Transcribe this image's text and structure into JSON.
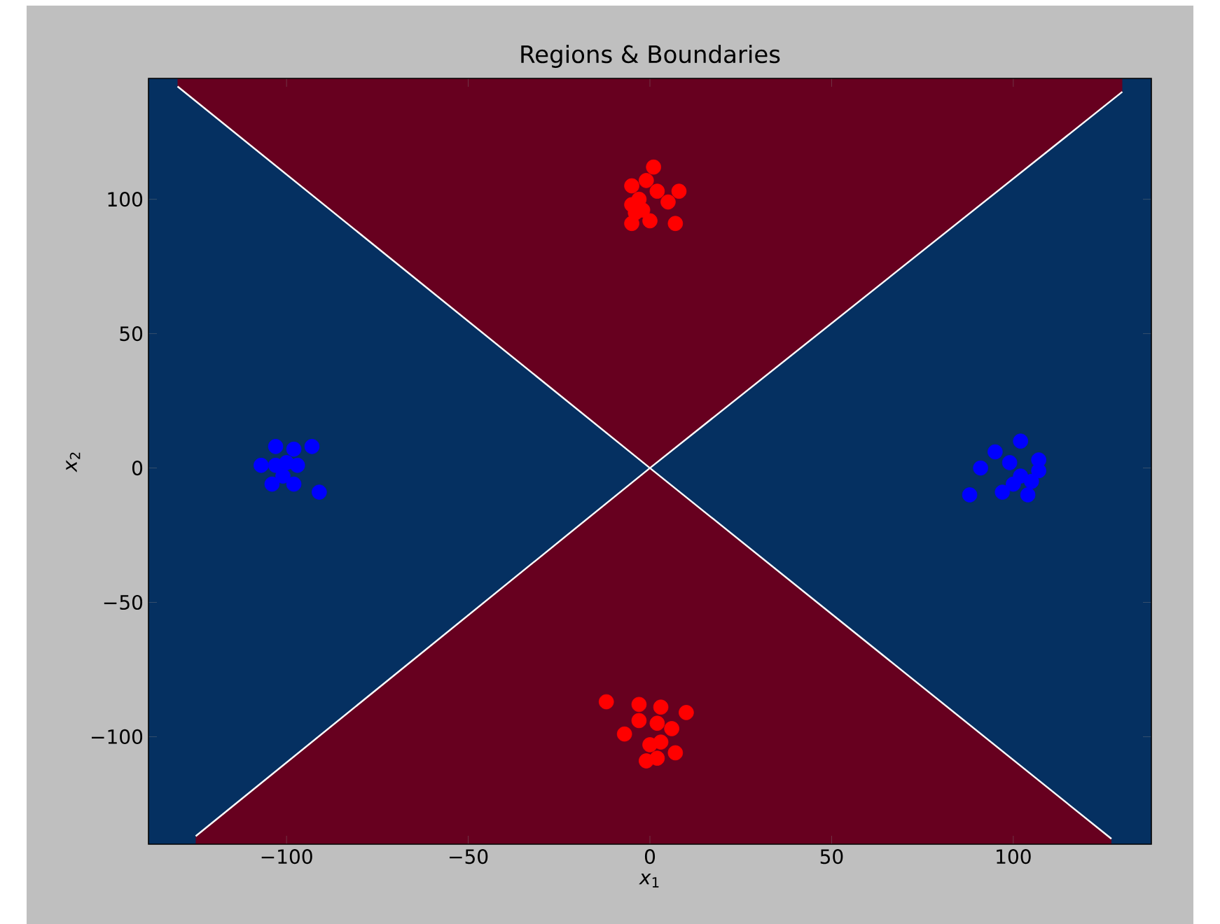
{
  "chart_data": {
    "type": "scatter",
    "title": "Regions & Boundaries",
    "xlabel": "*x*$_{1}$",
    "ylabel": "*x*$_{2}$",
    "xlim": [
      -138,
      138
    ],
    "ylim": [
      -140,
      145
    ],
    "xticks": [
      {
        "value": -100,
        "label": "−100"
      },
      {
        "value": -50,
        "label": "−50"
      },
      0,
      50,
      100
    ],
    "yticks": [
      {
        "value": -100,
        "label": "−100"
      },
      {
        "value": -50,
        "label": "−50"
      },
      0,
      50,
      100
    ],
    "grid": false,
    "series": [
      {
        "type": "line",
        "marker": "none",
        "color": "#ffffff",
        "x": [
          -130,
          0,
          130
        ],
        "values": [
          142,
          0,
          140
        ],
        "lower": [
          142,
          0,
          140
        ],
        "upper": [
          145,
          145,
          145
        ]
      },
      {
        "type": "line",
        "marker": "none",
        "color": "#ffffff",
        "x": [
          -125,
          0,
          127
        ],
        "values": [
          -137,
          0,
          -138
        ],
        "lower": [
          -140,
          -140,
          -140
        ],
        "upper": [
          -137,
          0,
          -138
        ]
      },
      {
        "marker": "circle",
        "color": "#ff0000",
        "x": [
          1,
          -5,
          -1,
          8,
          -5,
          -3,
          2,
          5,
          -5,
          0,
          7,
          -4,
          -2,
          -12,
          -3,
          3,
          10,
          -7,
          -3,
          2,
          6,
          3,
          7,
          -1,
          2,
          0
        ],
        "values": [
          112,
          105,
          107,
          103,
          98,
          100,
          103,
          99,
          91,
          92,
          91,
          95,
          96,
          -87,
          -88,
          -89,
          -91,
          -99,
          -94,
          -95,
          -97,
          -102,
          -106,
          -109,
          -108,
          -103
        ]
      },
      {
        "marker": "circle",
        "color": "#0000ff",
        "x": [
          -103,
          -98,
          -93,
          -107,
          -103,
          -100,
          -97,
          -104,
          -98,
          -91,
          -101,
          102,
          95,
          91,
          88,
          97,
          99,
          102,
          107,
          107,
          104,
          100,
          105
        ],
        "values": [
          8,
          7,
          8,
          1,
          1,
          2,
          1,
          -6,
          -6,
          -9,
          -3,
          10,
          6,
          0,
          -10,
          -9,
          2,
          -3,
          3,
          -1,
          -10,
          -6,
          -5
        ]
      }
    ]
  }
}
